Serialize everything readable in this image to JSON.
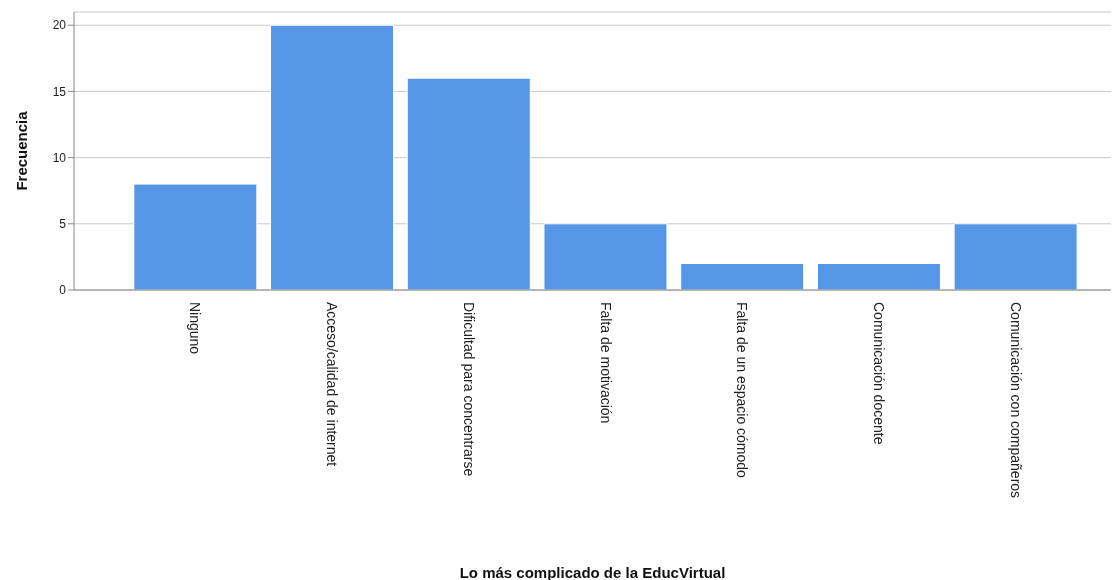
{
  "chart_data": {
    "type": "bar",
    "xlabel": "Lo más complicado de la EducVirtual",
    "ylabel": "Frecuencia",
    "categories": [
      "Ninguno",
      "Acceso/calidad de internet",
      "Dificultad para concentrarse",
      "Falta de motivación",
      "Falta de un espacio cómodo",
      "Comunicación docente",
      "Comunicación con compañeros"
    ],
    "values": [
      8,
      20,
      16,
      5,
      2,
      2,
      5
    ],
    "color": "#5596e6",
    "ylim": [
      0,
      21
    ],
    "yticks": [
      0,
      5,
      10,
      15,
      20
    ],
    "grid": "y",
    "legend": false
  }
}
